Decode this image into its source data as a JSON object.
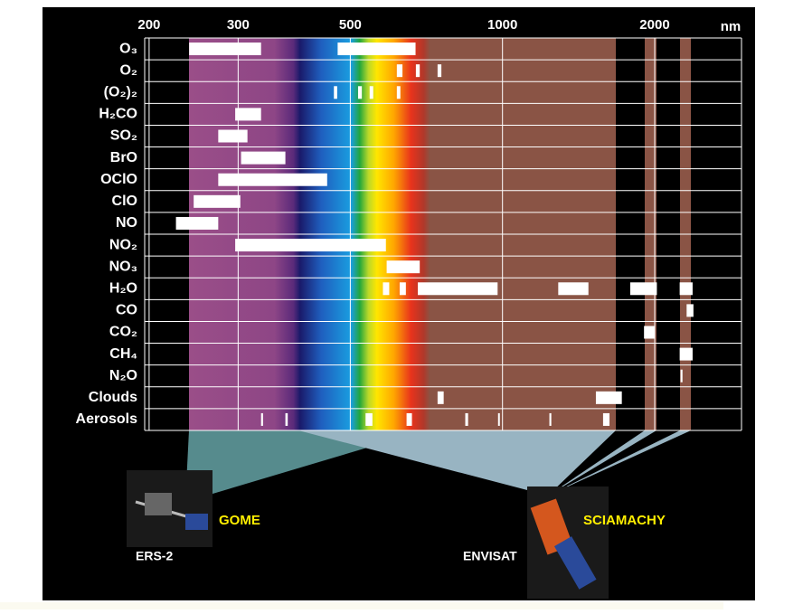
{
  "chart_data": {
    "type": "range",
    "xlabel": "nm",
    "log_x": true,
    "xlim": [
      196,
      2970
    ],
    "xticks": [
      200,
      300,
      500,
      1000,
      2000
    ],
    "grid": true,
    "color": "#ffffff",
    "categories": [
      "O₃",
      "O₂",
      "(O₂)₂",
      "H₂CO",
      "SO₂",
      "BrO",
      "OClO",
      "ClO",
      "NO",
      "NO₂",
      "NO₃",
      "H₂O",
      "CO",
      "CO₂",
      "CH₄",
      "N₂O",
      "Clouds",
      "Aerosols"
    ],
    "ranges": [
      [
        [
          240,
          333
        ],
        [
          472,
          673
        ]
      ],
      [
        [
          618,
          634
        ],
        [
          674,
          686
        ],
        [
          744,
          757
        ]
      ],
      [
        [
          464,
          471
        ],
        [
          518,
          527
        ],
        [
          546,
          555
        ],
        [
          618,
          628
        ]
      ],
      [
        [
          296,
          333
        ]
      ],
      [
        [
          274,
          313
        ]
      ],
      [
        [
          304,
          372
        ]
      ],
      [
        [
          274,
          450
        ]
      ],
      [
        [
          245,
          303
        ]
      ],
      [
        [
          226,
          274
        ]
      ],
      [
        [
          296,
          588
        ]
      ],
      [
        [
          590,
          686
        ]
      ],
      [
        [
          580,
          597
        ],
        [
          626,
          644
        ],
        [
          680,
          978
        ],
        [
          1289,
          1479
        ],
        [
          1789,
          2020
        ],
        [
          2241,
          2377
        ]
      ],
      [
        [
          2313,
          2386
        ]
      ],
      [
        [
          1905,
          2000
        ]
      ],
      [
        [
          2241,
          2377
        ]
      ],
      [
        [
          2250,
          2270
        ]
      ],
      [
        [
          744,
          765
        ],
        [
          1530,
          1722
        ]
      ],
      [
        [
          333,
          336
        ],
        [
          372,
          376
        ],
        [
          536,
          553
        ],
        [
          646,
          662
        ],
        [
          844,
          855
        ],
        [
          980,
          988
        ],
        [
          1238,
          1249
        ],
        [
          1581,
          1628
        ]
      ]
    ],
    "annotations": [
      "GOME",
      "ERS-2",
      "SCIAMACHY",
      "ENVISAT"
    ]
  }
}
